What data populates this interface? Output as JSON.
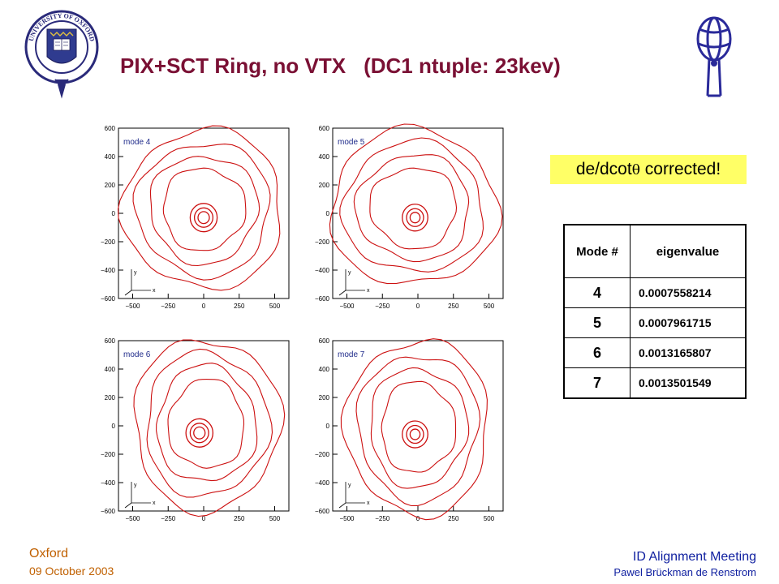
{
  "header": {
    "title_main": "PIX+SCT Ring, no VTX",
    "title_sub": "(DC1 ntuple: 23kev)",
    "logo_left": "University of Oxford crest",
    "logo_right": "ATLAS logo",
    "crest_text": "UNIVERSITY OF OXFORD"
  },
  "note": {
    "prefix": "de/dcot",
    "theta": "θ",
    "suffix": " corrected!"
  },
  "table": {
    "col_mode": "Mode #",
    "col_eigen": "eigenvalue",
    "rows": [
      {
        "mode": "4",
        "eigenvalue": "0.0007558214"
      },
      {
        "mode": "5",
        "eigenvalue": "0.0007961715"
      },
      {
        "mode": "6",
        "eigenvalue": "0.0013165807"
      },
      {
        "mode": "7",
        "eigenvalue": "0.0013501549"
      }
    ]
  },
  "footer": {
    "place": "Oxford",
    "date": "09 October 2003",
    "meeting": "ID Alignment Meeting",
    "author": "Pawel Brückman de Renstrom"
  },
  "chart_data": [
    {
      "type": "line",
      "label": "mode 4",
      "xticks": [
        "−500",
        "−250",
        "0",
        "250",
        "500"
      ],
      "yticks": [
        "600",
        "400",
        "200",
        "0",
        "−200",
        "−400",
        "−600"
      ],
      "xlim": [
        -600,
        600
      ],
      "ylim": [
        -600,
        600
      ],
      "axis_glyph": [
        "y",
        "x"
      ]
    },
    {
      "type": "line",
      "label": "mode 5",
      "xticks": [
        "−500",
        "−250",
        "0",
        "250",
        "500"
      ],
      "yticks": [
        "600",
        "400",
        "200",
        "0",
        "−200",
        "−400",
        "−600"
      ],
      "xlim": [
        -600,
        600
      ],
      "ylim": [
        -600,
        600
      ],
      "axis_glyph": [
        "y",
        "x"
      ]
    },
    {
      "type": "line",
      "label": "mode 6",
      "xticks": [
        "−500",
        "−250",
        "0",
        "250",
        "500"
      ],
      "yticks": [
        "600",
        "400",
        "200",
        "0",
        "−200",
        "−400",
        "−600"
      ],
      "xlim": [
        -600,
        600
      ],
      "ylim": [
        -600,
        600
      ],
      "axis_glyph": [
        "y",
        "x"
      ]
    },
    {
      "type": "line",
      "label": "mode 7",
      "xticks": [
        "−500",
        "−250",
        "0",
        "250",
        "500"
      ],
      "yticks": [
        "600",
        "400",
        "200",
        "0",
        "−200",
        "−400",
        "−600"
      ],
      "xlim": [
        -600,
        600
      ],
      "ylim": [
        -600,
        600
      ],
      "axis_glyph": [
        "y",
        "x"
      ]
    }
  ]
}
